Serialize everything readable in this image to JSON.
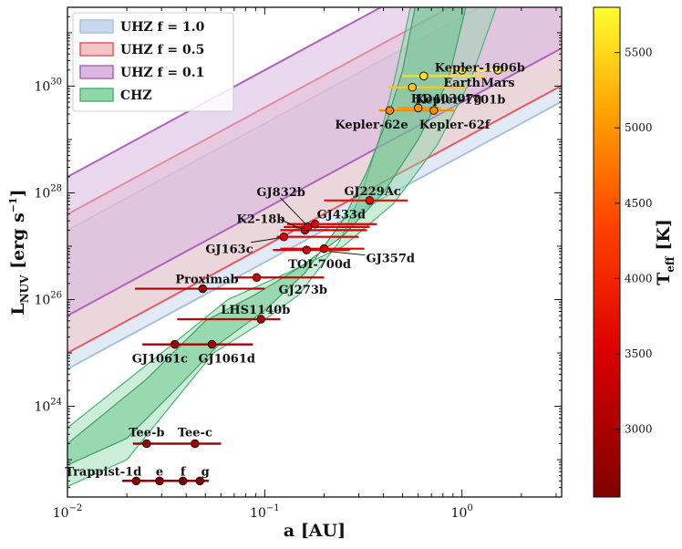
{
  "chart_data": {
    "type": "scatter",
    "xlabel": "a [AU]",
    "ylabel": "L_NUV [erg s^-1]",
    "xscale": "log",
    "yscale": "log",
    "xlim": [
      0.01,
      3.2
    ],
    "ylim": [
      2e+22,
      3e+31
    ],
    "xticks": [
      {
        "value": 0.01,
        "label": "10",
        "exp": "−2"
      },
      {
        "value": 0.1,
        "label": "10",
        "exp": "−1"
      },
      {
        "value": 1,
        "label": "10",
        "exp": "0"
      }
    ],
    "yticks": [
      {
        "value": 1e+24,
        "label": "10",
        "exp": "24"
      },
      {
        "value": 1e+26,
        "label": "10",
        "exp": "26"
      },
      {
        "value": 1e+28,
        "label": "10",
        "exp": "28"
      },
      {
        "value": 1e+30,
        "label": "10",
        "exp": "30"
      }
    ],
    "legend": {
      "position": "top-left",
      "entries": [
        {
          "text": "UHZ f = 1.0",
          "color": "#aec7e8"
        },
        {
          "text": "UHZ f = 0.5",
          "color": "#f4a0a0"
        },
        {
          "text": "UHZ f = 0.1",
          "color": "#b07cc6"
        },
        {
          "text": "CHZ",
          "color": "#5fbf87"
        }
      ]
    },
    "uhz_bands": [
      {
        "name": "UHZ f = 1.0",
        "fill": "#c9d8ec",
        "edge": "#a8c2e2",
        "log_y_at_xmin": [
          24.7,
          27.3
        ],
        "log_slope": 2.0
      },
      {
        "name": "UHZ f = 0.5",
        "fill": "#f3c4c4",
        "edge": "#e8595f",
        "log_y_at_xmin": [
          25.0,
          27.6
        ],
        "log_slope": 2.0
      },
      {
        "name": "UHZ f = 0.1",
        "fill": "#d9b8e0",
        "edge": "#b062bf",
        "log_y_at_xmin": [
          25.7,
          28.3
        ],
        "log_slope": 2.0
      }
    ],
    "chz": {
      "inner": {
        "left": [
          [
            0.01,
            22.9
          ],
          [
            0.02,
            23.4
          ],
          [
            0.035,
            24.3
          ],
          [
            0.06,
            25.2
          ],
          [
            0.1,
            25.8
          ],
          [
            0.16,
            26.5
          ],
          [
            0.25,
            27.5
          ],
          [
            0.33,
            28.4
          ],
          [
            0.42,
            29.4
          ],
          [
            0.5,
            30.3
          ],
          [
            0.58,
            31.5
          ]
        ],
        "right": [
          [
            0.01,
            23.3
          ],
          [
            0.025,
            24.5
          ],
          [
            0.05,
            25.6
          ],
          [
            0.09,
            26.1
          ],
          [
            0.15,
            26.6
          ],
          [
            0.25,
            27.2
          ],
          [
            0.4,
            28.0
          ],
          [
            0.6,
            29.0
          ],
          [
            0.85,
            30.1
          ],
          [
            1.05,
            31.5
          ]
        ]
      },
      "outer": {
        "left": [
          [
            0.01,
            22.5
          ],
          [
            0.02,
            23.0
          ],
          [
            0.03,
            23.8
          ],
          [
            0.055,
            25.0
          ],
          [
            0.09,
            25.5
          ],
          [
            0.15,
            26.1
          ],
          [
            0.24,
            27.1
          ],
          [
            0.31,
            28.0
          ],
          [
            0.38,
            29.0
          ],
          [
            0.46,
            30.2
          ],
          [
            0.55,
            31.5
          ]
        ],
        "right": [
          [
            0.01,
            23.6
          ],
          [
            0.03,
            25.0
          ],
          [
            0.065,
            26.0
          ],
          [
            0.13,
            26.5
          ],
          [
            0.25,
            27.0
          ],
          [
            0.45,
            27.8
          ],
          [
            0.75,
            28.9
          ],
          [
            1.1,
            30.1
          ],
          [
            1.5,
            31.5
          ]
        ]
      }
    },
    "colorbar": {
      "label": "T_eff [K]",
      "min": 2550,
      "max": 5800,
      "ticks": [
        3000,
        3500,
        4000,
        4500,
        5000,
        5500
      ]
    },
    "planets": [
      {
        "name": "Earth",
        "label": "Earth",
        "a": 1.0,
        "L": 2e+30,
        "Teff": 5772,
        "xerr": [
          0.85,
          1.12
        ]
      },
      {
        "name": "Mars",
        "label": "Mars",
        "a": 1.52,
        "L": 2e+30,
        "Teff": 5772,
        "xerr": [
          1.12,
          1.75
        ]
      },
      {
        "name": "Kepler-1606b",
        "label": "Kepler-1606b",
        "a": 0.64,
        "L": 1.55e+30,
        "Teff": 5570,
        "xerr": [
          0.5,
          1.3
        ]
      },
      {
        "name": "Kepler-1701b",
        "label": "Kepler-1701b",
        "a": 0.56,
        "L": 9.5e+29,
        "Teff": 5380,
        "xerr": [
          0.42,
          1.05
        ]
      },
      {
        "name": "HD40307g",
        "label": "HD40307g",
        "a": 0.6,
        "L": 3.9e+29,
        "Teff": 4980,
        "xerr": [
          0.47,
          0.78
        ]
      },
      {
        "name": "Kepler-62e",
        "label": "Kepler-62e",
        "a": 0.43,
        "L": 3.5e+29,
        "Teff": 4930,
        "xerr": [
          0.38,
          0.74
        ]
      },
      {
        "name": "Kepler-62f",
        "label": "Kepler-62f",
        "a": 0.72,
        "L": 3.5e+29,
        "Teff": 4930,
        "xerr": [
          0.55,
          0.92
        ]
      },
      {
        "name": "GJ229Ac",
        "label": "GJ229Ac",
        "a": 0.34,
        "L": 7.2e+27,
        "Teff": 3700,
        "xerr": [
          0.2,
          0.53
        ]
      },
      {
        "name": "GJ433d",
        "label": "GJ433d",
        "a": 0.18,
        "L": 2.6e+27,
        "Teff": 3500,
        "xerr": [
          0.13,
          0.37
        ]
      },
      {
        "name": "K2-18b",
        "label": "K2-18b",
        "a": 0.16,
        "L": 2e+27,
        "Teff": 3450,
        "xerr": [
          0.12,
          0.33
        ]
      },
      {
        "name": "GJ832b",
        "label": "GJ832b",
        "a": 0.165,
        "L": 2.3e+27,
        "Teff": 3470,
        "xerr": [
          0.125,
          0.34
        ]
      },
      {
        "name": "GJ163c",
        "label": "GJ163c",
        "a": 0.125,
        "L": 1.5e+27,
        "Teff": 3500,
        "xerr": [
          0.115,
          0.3
        ]
      },
      {
        "name": "GJ357d",
        "label": "GJ357d",
        "a": 0.2,
        "L": 9e+26,
        "Teff": 3500,
        "xerr": [
          0.12,
          0.32
        ]
      },
      {
        "name": "TOI-700d",
        "label": "TOI-700d",
        "a": 0.163,
        "L": 8.5e+26,
        "Teff": 3480,
        "xerr": [
          0.11,
          0.27
        ]
      },
      {
        "name": "GJ273b",
        "label": "GJ273b",
        "a": 0.091,
        "L": 2.6e+26,
        "Teff": 3380,
        "xerr": [
          0.07,
          0.2
        ]
      },
      {
        "name": "Proximab",
        "label": "Proximab",
        "a": 0.0485,
        "L": 1.6e+26,
        "Teff": 3050,
        "xerr": [
          0.022,
          0.1
        ]
      },
      {
        "name": "LHS1140b",
        "label": "LHS1140b",
        "a": 0.0957,
        "L": 4.3e+25,
        "Teff": 3200,
        "xerr": [
          0.036,
          0.12
        ]
      },
      {
        "name": "GJ1061c",
        "label": "GJ1061c",
        "a": 0.035,
        "L": 1.45e+25,
        "Teff": 2950,
        "xerr": [
          0.024,
          0.087
        ]
      },
      {
        "name": "GJ1061d",
        "label": "GJ1061d",
        "a": 0.054,
        "L": 1.45e+25,
        "Teff": 2950,
        "xerr": [
          0.024,
          0.087
        ]
      },
      {
        "name": "Tee-b",
        "label": "Tee-b",
        "a": 0.0252,
        "L": 2e+23,
        "Teff": 2900,
        "xerr": [
          0.0215,
          0.06
        ]
      },
      {
        "name": "Tee-c",
        "label": "Tee-c",
        "a": 0.0443,
        "L": 2e+23,
        "Teff": 2900,
        "xerr": [
          0.0215,
          0.06
        ]
      },
      {
        "name": "Trappist-1d",
        "label": "Trappist-1d",
        "a": 0.0223,
        "L": 4e+22,
        "Teff": 2570,
        "xerr": [
          0.019,
          0.052
        ]
      },
      {
        "name": "Trappist-1e",
        "label": "e",
        "a": 0.0293,
        "L": 4e+22,
        "Teff": 2570,
        "xerr": [
          0.019,
          0.052
        ]
      },
      {
        "name": "Trappist-1f",
        "label": "f",
        "a": 0.0385,
        "L": 4e+22,
        "Teff": 2570,
        "xerr": [
          0.019,
          0.052
        ]
      },
      {
        "name": "Trappist-1g",
        "label": "g",
        "a": 0.0469,
        "L": 4e+22,
        "Teff": 2570,
        "xerr": [
          0.019,
          0.052
        ]
      }
    ]
  }
}
